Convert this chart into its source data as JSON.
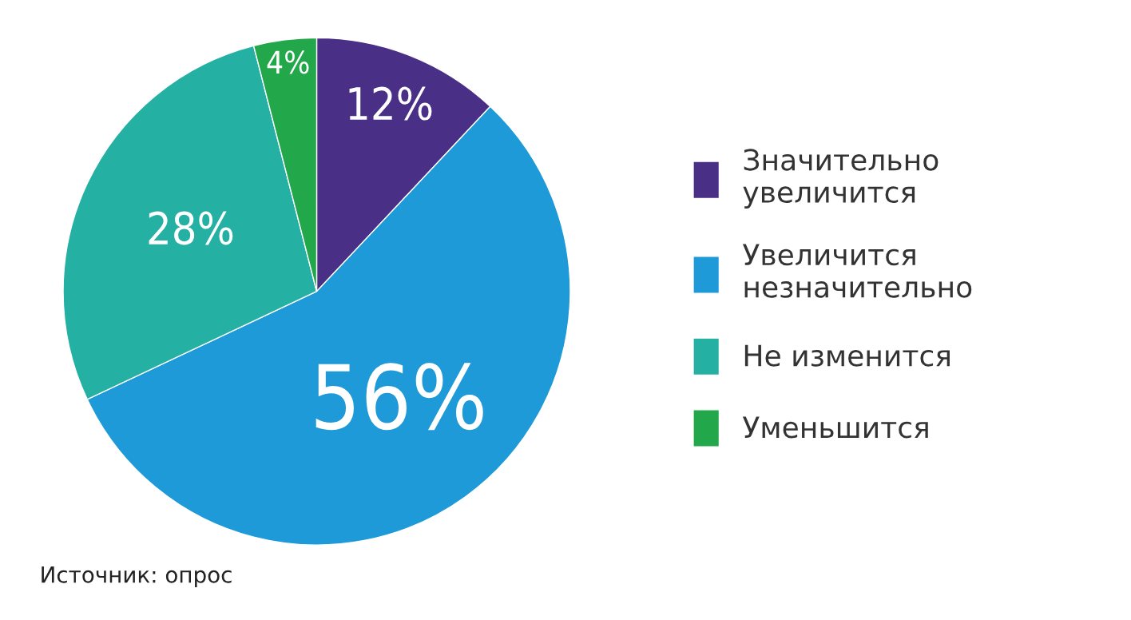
{
  "chart_data": {
    "type": "pie",
    "categories": [
      "Значительно\nувеличится",
      "Увеличится\nнезначительно",
      "Не изменится",
      "Уменьшится"
    ],
    "values": [
      12,
      56,
      28,
      4
    ],
    "colors": [
      "#4a2f86",
      "#1e9ad8",
      "#25b0a4",
      "#22a74a"
    ],
    "value_labels": [
      "12%",
      "56%",
      "28%",
      "4%"
    ],
    "legend": "right",
    "annotations": [
      "Источник: опрос"
    ]
  }
}
